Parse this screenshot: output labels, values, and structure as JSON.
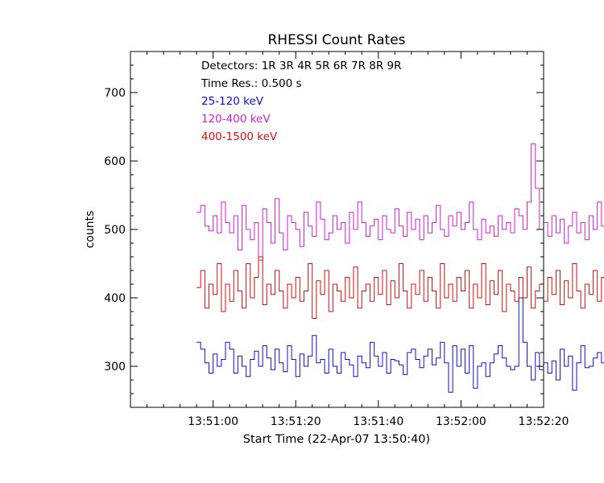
{
  "chart_data": {
    "type": "line",
    "title": "RHESSI Count Rates",
    "xlabel": "Start Time (22-Apr-07 13:50:40)",
    "ylabel": "counts",
    "x_units": "seconds since 13:50:40",
    "xlim": [
      0,
      100
    ],
    "ylim": [
      240,
      760
    ],
    "x_ticks": [
      {
        "value": 20,
        "label": "13:51:00"
      },
      {
        "value": 40,
        "label": "13:51:20"
      },
      {
        "value": 60,
        "label": "13:51:40"
      },
      {
        "value": 80,
        "label": "13:52:00"
      },
      {
        "value": 100,
        "label": "13:52:20"
      }
    ],
    "y_ticks": [
      {
        "value": 300,
        "label": "300"
      },
      {
        "value": 400,
        "label": "400"
      },
      {
        "value": 500,
        "label": "500"
      },
      {
        "value": 600,
        "label": "600"
      },
      {
        "value": 700,
        "label": "700"
      }
    ],
    "annotations": {
      "detectors": "Detectors:  1R 3R 4R 5R 6R 7R 8R 9R",
      "time_res": "Time Res.: 0.500 s"
    },
    "x_start": 16,
    "x_step": 1,
    "series": [
      {
        "name": "25-120 keV",
        "color": "#1010c8",
        "values": [
          335,
          325,
          305,
          290,
          318,
          300,
          310,
          335,
          325,
          290,
          315,
          300,
          285,
          310,
          322,
          300,
          330,
          312,
          295,
          325,
          305,
          292,
          330,
          310,
          285,
          318,
          300,
          315,
          345,
          305,
          310,
          290,
          325,
          300,
          290,
          320,
          310,
          302,
          285,
          315,
          305,
          298,
          335,
          315,
          300,
          320,
          290,
          310,
          308,
          302,
          288,
          320,
          325,
          310,
          298,
          315,
          325,
          302,
          312,
          335,
          305,
          262,
          330,
          300,
          325,
          290,
          330,
          268,
          300,
          305,
          285,
          305,
          318,
          330,
          312,
          300,
          295,
          300,
          400,
          335,
          300,
          280,
          320,
          295,
          305,
          290,
          308,
          280,
          325,
          300,
          315,
          265,
          305,
          330,
          298,
          300,
          312,
          320,
          305,
          285,
          310,
          300,
          325,
          308,
          290,
          300,
          315,
          298,
          310,
          295,
          275,
          310,
          320,
          290,
          300,
          305,
          295,
          300,
          310,
          300,
          305,
          278,
          312,
          295,
          305,
          285,
          300,
          310,
          292,
          305,
          322,
          300,
          290,
          295,
          318,
          300,
          310,
          298,
          305,
          316,
          290,
          300,
          320,
          305,
          310,
          295,
          302,
          308,
          300,
          310,
          305,
          320,
          290,
          305,
          315,
          298,
          310,
          300,
          305,
          310
        ]
      },
      {
        "name": "120-400 keV",
        "color": "#d020d0",
        "values": [
          525,
          535,
          505,
          498,
          520,
          495,
          540,
          510,
          495,
          520,
          470,
          535,
          500,
          485,
          510,
          455,
          530,
          510,
          480,
          545,
          495,
          470,
          520,
          510,
          500,
          475,
          525,
          505,
          490,
          540,
          515,
          485,
          495,
          520,
          500,
          510,
          480,
          525,
          500,
          540,
          510,
          490,
          505,
          515,
          485,
          520,
          500,
          495,
          530,
          505,
          490,
          525,
          500,
          515,
          485,
          520,
          495,
          510,
          535,
          500,
          490,
          520,
          505,
          525,
          500,
          510,
          540,
          500,
          485,
          515,
          495,
          505,
          490,
          520,
          500,
          510,
          495,
          530,
          520,
          500,
          540,
          625,
          560,
          500,
          510,
          490,
          520,
          495,
          515,
          480,
          505,
          525,
          495,
          510,
          485,
          520,
          500,
          540,
          505,
          490,
          515,
          480,
          525,
          500,
          510,
          470,
          500,
          520,
          495,
          505,
          530,
          500,
          485,
          510,
          495,
          520,
          470,
          500,
          515,
          490,
          525,
          505,
          480,
          500,
          510,
          530,
          490,
          505,
          520,
          495,
          510,
          485,
          500,
          520,
          530,
          495,
          505,
          480,
          500,
          515,
          490,
          525,
          470,
          505,
          500,
          515,
          480,
          520,
          495,
          505,
          490,
          510,
          500,
          520,
          485,
          510,
          495,
          505,
          490,
          500
        ]
      },
      {
        "name": "400-1500 keV",
        "color": "#d01010",
        "values": [
          415,
          440,
          385,
          420,
          405,
          450,
          380,
          420,
          395,
          440,
          410,
          385,
          450,
          400,
          430,
          460,
          390,
          420,
          405,
          440,
          410,
          385,
          420,
          400,
          430,
          395,
          410,
          450,
          370,
          425,
          405,
          440,
          380,
          420,
          410,
          395,
          430,
          400,
          445,
          385,
          410,
          420,
          395,
          430,
          405,
          440,
          390,
          425,
          400,
          450,
          410,
          385,
          420,
          405,
          440,
          395,
          430,
          410,
          385,
          450,
          400,
          420,
          395,
          430,
          410,
          440,
          385,
          420,
          400,
          450,
          390,
          425,
          405,
          440,
          380,
          420,
          410,
          395,
          430,
          400,
          445,
          385,
          410,
          420,
          395,
          430,
          405,
          440,
          390,
          425,
          400,
          450,
          410,
          385,
          420,
          405,
          440,
          395,
          430,
          410,
          385,
          450,
          400,
          420,
          395,
          430,
          410,
          440,
          385,
          420,
          400,
          450,
          390,
          425,
          405,
          440,
          380,
          420,
          410,
          395,
          430,
          400,
          445,
          385,
          410,
          420,
          395,
          430,
          405,
          440,
          390,
          425,
          400,
          450,
          410,
          385,
          420,
          405,
          440,
          395,
          430,
          410,
          385,
          450,
          400,
          420,
          395,
          430,
          410,
          440,
          385,
          420,
          400,
          450,
          390,
          425,
          405,
          440,
          380
        ]
      }
    ]
  }
}
